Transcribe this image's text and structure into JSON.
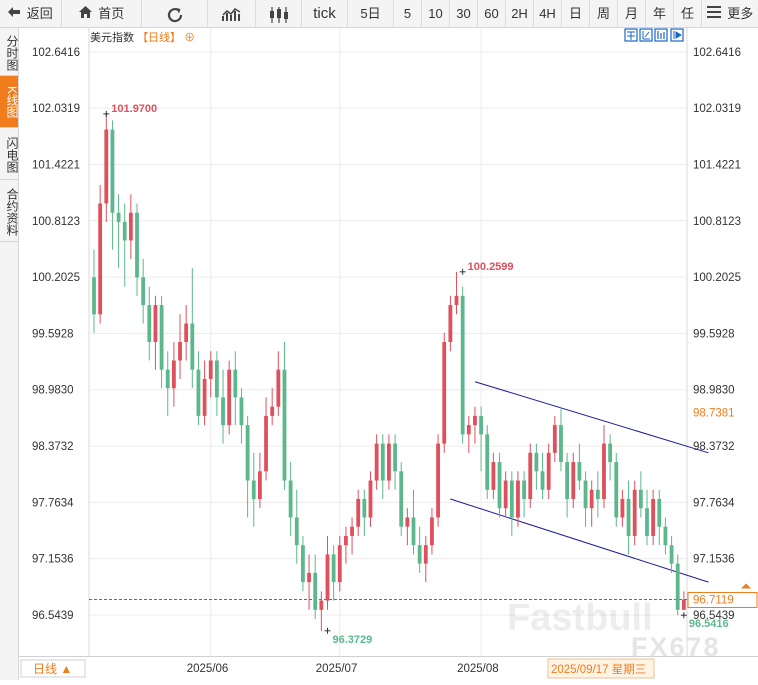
{
  "toolbar": {
    "back": "返回",
    "home": "首页",
    "refresh_icon": "refresh-icon",
    "tick": "tick",
    "periods": [
      "5日",
      "5",
      "10",
      "30",
      "60",
      "2H",
      "4H",
      "日",
      "周",
      "月",
      "年",
      "任"
    ],
    "more": "更多"
  },
  "sidebar": {
    "items": [
      {
        "label": "分时图",
        "active": false
      },
      {
        "label": "K线图",
        "active": true
      },
      {
        "label": "闪电图",
        "active": false
      },
      {
        "label": "合约资料",
        "active": false
      }
    ]
  },
  "chart_header": {
    "title": "美元指数",
    "period_tag": "【日线】",
    "plus_symbol": "⊕"
  },
  "bottom": {
    "period_label": "日线 ▲",
    "date_cursor": "2025/09/17 星期三"
  },
  "watermark": {
    "text1": "Fastbull",
    "text2": "FX678"
  },
  "colors": {
    "up": "#e0505c",
    "down": "#5cb88c",
    "accent": "#f07c1e",
    "channel": "#1a1aa0",
    "guide": "#3a6fc0"
  },
  "chart_data": {
    "type": "candlestick",
    "ylim": [
      96.1,
      102.9
    ],
    "y_ticks": [
      "102.6416",
      "102.0319",
      "101.4221",
      "100.8123",
      "100.2025",
      "99.5928",
      "98.9830",
      "98.3732",
      "97.7634",
      "97.1536",
      "96.5439"
    ],
    "x_labels": [
      {
        "label": "2025/06",
        "index": 19
      },
      {
        "label": "2025/07",
        "index": 40
      },
      {
        "label": "2025/08",
        "index": 63
      }
    ],
    "annotations": [
      {
        "text": "101.9700",
        "index": 2,
        "value": 101.97,
        "color": "#e0505c",
        "side": "above"
      },
      {
        "text": "100.2599",
        "index": 60,
        "value": 100.2599,
        "color": "#e0505c",
        "side": "above"
      },
      {
        "text": "96.3729",
        "index": 38,
        "value": 96.3729,
        "color": "#5cb88c",
        "side": "below"
      },
      {
        "text": "96.5416",
        "index": 96,
        "value": 96.5416,
        "color": "#5cb88c",
        "side": "below"
      }
    ],
    "price_tags": [
      {
        "text": "98.7381",
        "value": 98.7381,
        "color": "#f07c1e",
        "boxed": false
      },
      {
        "text": "96.7119",
        "value": 96.7119,
        "color": "#f07c1e",
        "boxed": true
      }
    ],
    "current_price": 96.7119,
    "channel": [
      {
        "from": [
          62,
          99.07
        ],
        "to": [
          100,
          98.3
        ]
      },
      {
        "from": [
          58,
          97.8
        ],
        "to": [
          100,
          96.9
        ]
      }
    ],
    "candles": [
      [
        100.2,
        99.8,
        100.5,
        99.6
      ],
      [
        99.8,
        101.0,
        101.2,
        99.7
      ],
      [
        101.0,
        101.8,
        101.97,
        100.8
      ],
      [
        101.8,
        100.9,
        101.9,
        100.5
      ],
      [
        100.9,
        100.8,
        101.1,
        100.3
      ],
      [
        100.8,
        100.6,
        101.0,
        100.1
      ],
      [
        100.6,
        100.9,
        101.1,
        100.4
      ],
      [
        100.9,
        100.2,
        101.0,
        100.0
      ],
      [
        100.2,
        99.9,
        100.4,
        99.7
      ],
      [
        99.9,
        99.5,
        100.1,
        99.3
      ],
      [
        99.5,
        99.9,
        100.0,
        99.2
      ],
      [
        99.9,
        99.2,
        100.0,
        99.0
      ],
      [
        99.2,
        99.0,
        99.4,
        98.7
      ],
      [
        99.0,
        99.3,
        99.5,
        98.8
      ],
      [
        99.3,
        99.5,
        99.8,
        99.1
      ],
      [
        99.5,
        99.7,
        99.9,
        99.3
      ],
      [
        99.7,
        99.2,
        100.3,
        99.0
      ],
      [
        99.2,
        98.7,
        99.4,
        98.6
      ],
      [
        98.7,
        99.1,
        99.3,
        98.6
      ],
      [
        99.1,
        99.3,
        99.4,
        98.9
      ],
      [
        99.3,
        98.9,
        99.4,
        98.7
      ],
      [
        98.9,
        98.6,
        99.2,
        98.4
      ],
      [
        98.6,
        99.2,
        99.3,
        98.5
      ],
      [
        99.2,
        98.9,
        99.4,
        98.6
      ],
      [
        98.9,
        98.6,
        99.0,
        98.4
      ],
      [
        98.6,
        98.0,
        98.7,
        97.6
      ],
      [
        98.0,
        97.8,
        98.3,
        97.5
      ],
      [
        97.8,
        98.1,
        98.3,
        97.7
      ],
      [
        98.1,
        98.7,
        98.9,
        98.0
      ],
      [
        98.7,
        98.8,
        99.0,
        98.6
      ],
      [
        98.8,
        99.2,
        99.4,
        98.7
      ],
      [
        99.2,
        98.0,
        99.5,
        97.9
      ],
      [
        98.0,
        97.6,
        98.2,
        97.4
      ],
      [
        97.6,
        97.3,
        97.9,
        97.1
      ],
      [
        97.3,
        96.9,
        97.4,
        96.8
      ],
      [
        96.9,
        97.0,
        97.2,
        96.6
      ],
      [
        97.0,
        96.6,
        97.2,
        96.5
      ],
      [
        96.6,
        96.7,
        96.8,
        96.37
      ],
      [
        96.7,
        97.2,
        97.4,
        96.6
      ],
      [
        97.2,
        96.9,
        97.3,
        96.7
      ],
      [
        96.9,
        97.3,
        97.4,
        96.8
      ],
      [
        97.3,
        97.4,
        97.5,
        97.1
      ],
      [
        97.4,
        97.5,
        97.6,
        97.2
      ],
      [
        97.5,
        97.8,
        97.9,
        97.4
      ],
      [
        97.8,
        97.6,
        97.9,
        97.4
      ],
      [
        97.6,
        98.0,
        98.1,
        97.5
      ],
      [
        98.0,
        98.4,
        98.5,
        97.9
      ],
      [
        98.4,
        98.0,
        98.5,
        97.8
      ],
      [
        98.0,
        98.4,
        98.5,
        97.9
      ],
      [
        98.4,
        98.1,
        98.5,
        97.9
      ],
      [
        98.1,
        97.5,
        98.2,
        97.4
      ],
      [
        97.5,
        97.6,
        97.7,
        97.3
      ],
      [
        97.6,
        97.3,
        97.9,
        97.2
      ],
      [
        97.3,
        97.1,
        97.5,
        97.0
      ],
      [
        97.1,
        97.3,
        97.4,
        96.9
      ],
      [
        97.3,
        97.6,
        97.7,
        97.2
      ],
      [
        97.6,
        98.4,
        98.5,
        97.5
      ],
      [
        98.4,
        99.5,
        99.6,
        98.3
      ],
      [
        99.5,
        99.9,
        100.0,
        99.4
      ],
      [
        99.9,
        100.0,
        100.26,
        99.8
      ],
      [
        100.0,
        98.5,
        100.1,
        98.4
      ],
      [
        98.5,
        98.6,
        98.7,
        98.3
      ],
      [
        98.6,
        98.7,
        98.8,
        98.4
      ],
      [
        98.7,
        98.5,
        98.8,
        98.1
      ],
      [
        98.5,
        97.9,
        98.6,
        97.8
      ],
      [
        97.9,
        98.2,
        98.3,
        97.8
      ],
      [
        98.2,
        97.7,
        98.3,
        97.6
      ],
      [
        97.7,
        98.0,
        98.1,
        97.6
      ],
      [
        98.0,
        97.6,
        98.1,
        97.4
      ],
      [
        97.6,
        98.0,
        98.1,
        97.5
      ],
      [
        98.0,
        97.8,
        98.1,
        97.6
      ],
      [
        97.8,
        98.3,
        98.4,
        97.7
      ],
      [
        98.3,
        98.1,
        98.4,
        97.9
      ],
      [
        98.1,
        97.9,
        98.3,
        97.8
      ],
      [
        97.9,
        98.3,
        98.4,
        97.8
      ],
      [
        98.3,
        98.6,
        98.7,
        98.2
      ],
      [
        98.6,
        98.2,
        98.8,
        98.1
      ],
      [
        98.2,
        97.8,
        98.3,
        97.6
      ],
      [
        97.8,
        98.2,
        98.3,
        97.7
      ],
      [
        98.2,
        98.0,
        98.4,
        97.9
      ],
      [
        98.0,
        97.7,
        98.1,
        97.5
      ],
      [
        97.7,
        97.9,
        98.0,
        97.5
      ],
      [
        97.9,
        97.8,
        98.1,
        97.6
      ],
      [
        97.8,
        98.4,
        98.6,
        97.7
      ],
      [
        98.4,
        98.2,
        98.5,
        98.0
      ],
      [
        98.2,
        97.6,
        98.3,
        97.5
      ],
      [
        97.6,
        97.8,
        97.9,
        97.5
      ],
      [
        97.8,
        97.4,
        98.0,
        97.2
      ],
      [
        97.4,
        97.9,
        98.0,
        97.3
      ],
      [
        97.9,
        97.7,
        98.1,
        97.6
      ],
      [
        97.7,
        97.4,
        97.9,
        97.3
      ],
      [
        97.4,
        97.8,
        97.9,
        97.3
      ],
      [
        97.8,
        97.5,
        97.9,
        97.3
      ],
      [
        97.5,
        97.3,
        97.6,
        97.2
      ],
      [
        97.3,
        97.1,
        97.4,
        97.0
      ],
      [
        97.1,
        96.6,
        97.2,
        96.54
      ],
      [
        96.6,
        96.71,
        96.8,
        96.6
      ]
    ]
  }
}
